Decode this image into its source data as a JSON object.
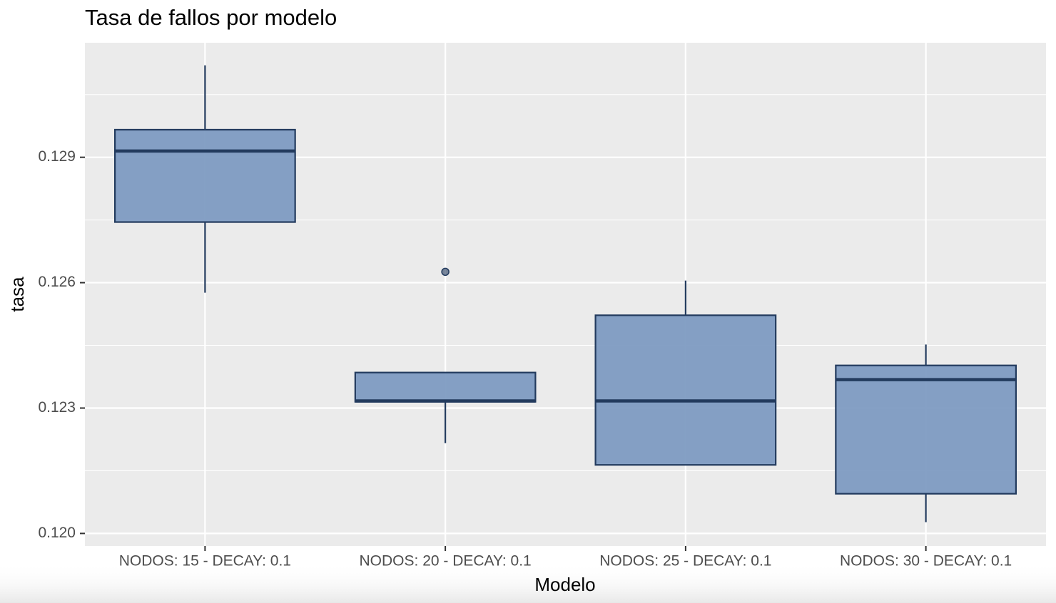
{
  "chart_data": {
    "type": "box",
    "title": "Tasa de fallos por modelo",
    "x_label": "Modelo",
    "y_label": "tasa",
    "categories": [
      "NODOS: 15 - DECAY: 0.1",
      "NODOS: 20 - DECAY: 0.1",
      "NODOS: 25 - DECAY: 0.1",
      "NODOS: 30 - DECAY: 0.1"
    ],
    "boxes": [
      {
        "whislo": 0.12576,
        "q1": 0.12745,
        "median": 0.12915,
        "q3": 0.12966,
        "whishi": 0.1312,
        "outliers": []
      },
      {
        "whislo": 0.12216,
        "q1": 0.12315,
        "median": 0.12317,
        "q3": 0.12385,
        "whishi": 0.12385,
        "outliers": [
          0.12626
        ]
      },
      {
        "whislo": 0.12164,
        "q1": 0.12164,
        "median": 0.12317,
        "q3": 0.12522,
        "whishi": 0.12605,
        "outliers": []
      },
      {
        "whislo": 0.12027,
        "q1": 0.12095,
        "median": 0.12368,
        "q3": 0.12402,
        "whishi": 0.12452,
        "outliers": []
      }
    ],
    "fill": "#7e9bc2",
    "stroke": "#233b5e",
    "ylim": [
      0.1197,
      0.13174
    ],
    "yticks": [
      {
        "value": 0.12,
        "label": "0.120"
      },
      0.123,
      0.126,
      0.129
    ],
    "yminor": [
      0.1215,
      0.1245,
      0.1275,
      0.1305
    ],
    "grid": true
  }
}
